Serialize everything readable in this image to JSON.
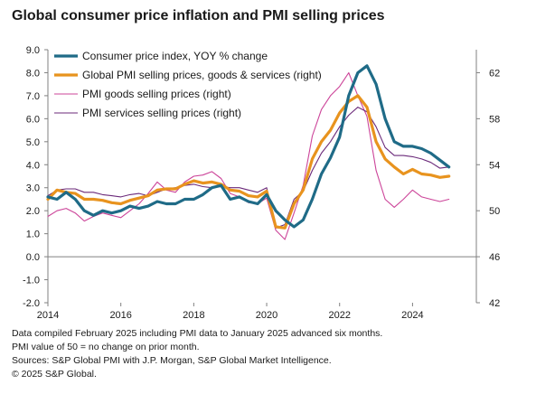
{
  "title": "Global consumer price inflation and PMI selling prices",
  "footnotes": [
    "Data compiled February 2025 including PMI data to January 2025 advanced six months.",
    "PMI value of 50 = no change on prior month.",
    "Sources: S&P Global PMI with J.P. Morgan, S&P Global Market Intelligence.",
    "© 2025 S&P Global."
  ],
  "colors": {
    "cpi": "#1f6b87",
    "pmi_all": "#e8931e",
    "pmi_goods": "#cc4499",
    "pmi_services": "#6b2a7a",
    "axis": "#808080"
  },
  "chart_data": {
    "type": "line",
    "x_tick_labels": [
      "2014",
      "2016",
      "2018",
      "2020",
      "2022",
      "2024"
    ],
    "x_range": [
      2014.0,
      2025.75
    ],
    "left_axis": {
      "range": [
        -2.0,
        9.0
      ],
      "tick_labels": [
        "-2.0",
        "-1.0",
        "0.0",
        "1.0",
        "2.0",
        "3.0",
        "4.0",
        "5.0",
        "6.0",
        "7.0",
        "8.0",
        "9.0"
      ]
    },
    "right_axis": {
      "range": [
        42,
        64
      ],
      "tick_labels": [
        "42",
        "46",
        "50",
        "54",
        "58",
        "62"
      ]
    },
    "grid": false,
    "legend_position": "top-left",
    "series": [
      {
        "name": "Consumer price index, YOY % change",
        "axis": "left",
        "points": [
          [
            2014.0,
            2.6
          ],
          [
            2014.25,
            2.5
          ],
          [
            2014.5,
            2.8
          ],
          [
            2014.75,
            2.5
          ],
          [
            2015.0,
            2.0
          ],
          [
            2015.25,
            1.8
          ],
          [
            2015.5,
            2.0
          ],
          [
            2015.75,
            1.9
          ],
          [
            2016.0,
            2.0
          ],
          [
            2016.25,
            2.2
          ],
          [
            2016.5,
            2.1
          ],
          [
            2016.75,
            2.2
          ],
          [
            2017.0,
            2.4
          ],
          [
            2017.25,
            2.3
          ],
          [
            2017.5,
            2.3
          ],
          [
            2017.75,
            2.5
          ],
          [
            2018.0,
            2.5
          ],
          [
            2018.25,
            2.7
          ],
          [
            2018.5,
            3.0
          ],
          [
            2018.75,
            3.1
          ],
          [
            2019.0,
            2.5
          ],
          [
            2019.25,
            2.6
          ],
          [
            2019.5,
            2.4
          ],
          [
            2019.75,
            2.3
          ],
          [
            2020.0,
            2.7
          ],
          [
            2020.25,
            2.0
          ],
          [
            2020.5,
            1.6
          ],
          [
            2020.75,
            1.3
          ],
          [
            2021.0,
            1.6
          ],
          [
            2021.25,
            2.5
          ],
          [
            2021.5,
            3.6
          ],
          [
            2021.75,
            4.3
          ],
          [
            2022.0,
            5.2
          ],
          [
            2022.25,
            7.0
          ],
          [
            2022.5,
            8.0
          ],
          [
            2022.75,
            8.3
          ],
          [
            2023.0,
            7.5
          ],
          [
            2023.25,
            6.0
          ],
          [
            2023.5,
            5.0
          ],
          [
            2023.75,
            4.8
          ],
          [
            2024.0,
            4.8
          ],
          [
            2024.25,
            4.7
          ],
          [
            2024.5,
            4.5
          ],
          [
            2024.75,
            4.2
          ],
          [
            2025.0,
            3.9
          ]
        ]
      },
      {
        "name": "Global PMI selling prices, goods & services (right)",
        "axis": "right",
        "points": [
          [
            2014.0,
            51.0
          ],
          [
            2014.25,
            51.8
          ],
          [
            2014.5,
            51.6
          ],
          [
            2014.75,
            51.5
          ],
          [
            2015.0,
            51.0
          ],
          [
            2015.25,
            51.0
          ],
          [
            2015.5,
            50.9
          ],
          [
            2015.75,
            50.7
          ],
          [
            2016.0,
            50.6
          ],
          [
            2016.25,
            50.9
          ],
          [
            2016.5,
            51.1
          ],
          [
            2016.75,
            51.3
          ],
          [
            2017.0,
            51.8
          ],
          [
            2017.25,
            51.9
          ],
          [
            2017.5,
            51.9
          ],
          [
            2017.75,
            52.3
          ],
          [
            2018.0,
            52.6
          ],
          [
            2018.25,
            52.4
          ],
          [
            2018.5,
            52.5
          ],
          [
            2018.75,
            52.3
          ],
          [
            2019.0,
            51.8
          ],
          [
            2019.25,
            51.7
          ],
          [
            2019.5,
            51.3
          ],
          [
            2019.75,
            51.2
          ],
          [
            2020.0,
            51.7
          ],
          [
            2020.25,
            48.6
          ],
          [
            2020.5,
            48.5
          ],
          [
            2020.75,
            50.6
          ],
          [
            2021.0,
            51.8
          ],
          [
            2021.25,
            54.5
          ],
          [
            2021.5,
            56.0
          ],
          [
            2021.75,
            57.0
          ],
          [
            2022.0,
            58.5
          ],
          [
            2022.25,
            59.5
          ],
          [
            2022.5,
            60.0
          ],
          [
            2022.75,
            59.0
          ],
          [
            2023.0,
            56.0
          ],
          [
            2023.25,
            54.5
          ],
          [
            2023.5,
            53.8
          ],
          [
            2023.75,
            53.2
          ],
          [
            2024.0,
            53.6
          ],
          [
            2024.25,
            53.2
          ],
          [
            2024.5,
            53.1
          ],
          [
            2024.75,
            52.9
          ],
          [
            2025.0,
            53.0
          ]
        ]
      },
      {
        "name": "PMI goods selling prices (right)",
        "axis": "right",
        "points": [
          [
            2014.0,
            49.5
          ],
          [
            2014.25,
            50.0
          ],
          [
            2014.5,
            50.2
          ],
          [
            2014.75,
            49.8
          ],
          [
            2015.0,
            49.1
          ],
          [
            2015.25,
            49.5
          ],
          [
            2015.5,
            49.8
          ],
          [
            2015.75,
            49.6
          ],
          [
            2016.0,
            49.4
          ],
          [
            2016.25,
            50.0
          ],
          [
            2016.5,
            50.6
          ],
          [
            2016.75,
            51.5
          ],
          [
            2017.0,
            52.5
          ],
          [
            2017.25,
            51.8
          ],
          [
            2017.5,
            51.6
          ],
          [
            2017.75,
            52.5
          ],
          [
            2018.0,
            53.0
          ],
          [
            2018.25,
            53.1
          ],
          [
            2018.5,
            53.4
          ],
          [
            2018.75,
            52.8
          ],
          [
            2019.0,
            51.5
          ],
          [
            2019.25,
            51.2
          ],
          [
            2019.5,
            50.7
          ],
          [
            2019.75,
            50.6
          ],
          [
            2020.0,
            51.1
          ],
          [
            2020.25,
            48.3
          ],
          [
            2020.5,
            47.5
          ],
          [
            2020.75,
            49.8
          ],
          [
            2021.0,
            52.2
          ],
          [
            2021.25,
            56.5
          ],
          [
            2021.5,
            58.8
          ],
          [
            2021.75,
            60.0
          ],
          [
            2022.0,
            60.8
          ],
          [
            2022.25,
            62.0
          ],
          [
            2022.5,
            60.0
          ],
          [
            2022.75,
            58.2
          ],
          [
            2023.0,
            53.5
          ],
          [
            2023.25,
            51.0
          ],
          [
            2023.5,
            50.3
          ],
          [
            2023.75,
            51.0
          ],
          [
            2024.0,
            51.8
          ],
          [
            2024.25,
            51.2
          ],
          [
            2024.5,
            51.0
          ],
          [
            2024.75,
            50.8
          ],
          [
            2025.0,
            51.0
          ]
        ]
      },
      {
        "name": "PMI services selling prices (right)",
        "axis": "right",
        "points": [
          [
            2014.0,
            51.3
          ],
          [
            2014.25,
            51.8
          ],
          [
            2014.5,
            51.9
          ],
          [
            2014.75,
            51.9
          ],
          [
            2015.0,
            51.6
          ],
          [
            2015.25,
            51.6
          ],
          [
            2015.5,
            51.4
          ],
          [
            2015.75,
            51.3
          ],
          [
            2016.0,
            51.2
          ],
          [
            2016.25,
            51.4
          ],
          [
            2016.5,
            51.5
          ],
          [
            2016.75,
            51.3
          ],
          [
            2017.0,
            51.6
          ],
          [
            2017.25,
            51.9
          ],
          [
            2017.5,
            52.0
          ],
          [
            2017.75,
            52.2
          ],
          [
            2018.0,
            52.3
          ],
          [
            2018.25,
            52.1
          ],
          [
            2018.5,
            52.0
          ],
          [
            2018.75,
            52.1
          ],
          [
            2019.0,
            52.0
          ],
          [
            2019.25,
            52.0
          ],
          [
            2019.5,
            51.8
          ],
          [
            2019.75,
            51.6
          ],
          [
            2020.0,
            52.0
          ],
          [
            2020.25,
            48.5
          ],
          [
            2020.5,
            48.8
          ],
          [
            2020.75,
            51.0
          ],
          [
            2021.0,
            51.7
          ],
          [
            2021.25,
            53.5
          ],
          [
            2021.5,
            55.0
          ],
          [
            2021.75,
            56.0
          ],
          [
            2022.0,
            57.3
          ],
          [
            2022.25,
            58.3
          ],
          [
            2022.5,
            59.0
          ],
          [
            2022.75,
            58.6
          ],
          [
            2023.0,
            57.3
          ],
          [
            2023.25,
            55.5
          ],
          [
            2023.5,
            54.8
          ],
          [
            2023.75,
            54.8
          ],
          [
            2024.0,
            54.7
          ],
          [
            2024.25,
            54.5
          ],
          [
            2024.5,
            54.2
          ],
          [
            2024.75,
            53.7
          ],
          [
            2025.0,
            53.8
          ]
        ]
      }
    ]
  }
}
